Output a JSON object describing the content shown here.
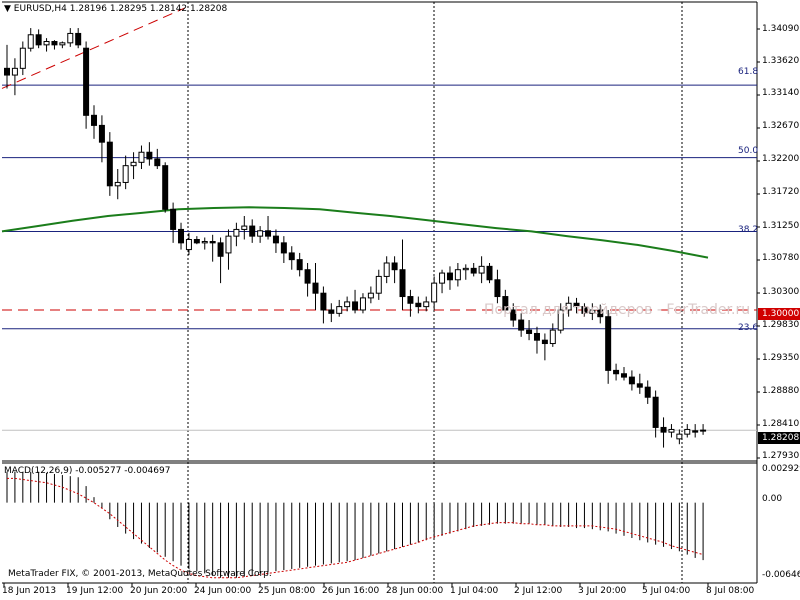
{
  "header": {
    "icon": "triangle-down-icon",
    "symbol_line": "EURUSD,H4  1.28196 1.28295 1.28142 1.28208"
  },
  "price_axis": {
    "labels": [
      "1.34090",
      "1.33620",
      "1.33140",
      "1.32670",
      "1.32200",
      "1.31720",
      "1.31250",
      "1.30780",
      "1.30300",
      "1.29830",
      "1.29350",
      "1.28880",
      "1.28410",
      "1.27930"
    ],
    "current_price": "1.28208",
    "dashed_price": "1.30000"
  },
  "fibo": {
    "levels": [
      "61.8",
      "50.0",
      "38.2",
      "23.6"
    ]
  },
  "watermark": "Портал для трейдеров - ForTrader.ru",
  "macd": {
    "title": "MACD(12,26,9) -0.005277 -0.004697",
    "axis_labels": [
      "0.002929",
      "0.00",
      "-0.006468"
    ]
  },
  "time_axis": {
    "labels": [
      "18 Jun 2013",
      "19 Jun 12:00",
      "20 Jun 20:00",
      "24 Jun 00:00",
      "25 Jun 08:00",
      "26 Jun 16:00",
      "28 Jun 00:00",
      "1 Jul 04:00",
      "2 Jul 12:00",
      "3 Jul 20:00",
      "5 Jul 04:00",
      "8 Jul 08:00"
    ]
  },
  "footer": "MetaTrader FIX, © 2001-2013, MetaQuotes Software Corp.",
  "colors": {
    "bull": "#ffffff",
    "bear": "#000000",
    "ma": "#1b7d1b",
    "fibo": "#1a237e",
    "trend": "#cc0000",
    "signal": "#cc0000",
    "badge_bg": "#d00000"
  },
  "chart_data": [
    {
      "type": "candlestick",
      "title": "EURUSD,H4",
      "ylim": [
        1.2775,
        1.3435
      ],
      "series": [
        {
          "o": 1.336,
          "h": 1.3395,
          "l": 1.333,
          "c": 1.335
        },
        {
          "o": 1.335,
          "h": 1.3375,
          "l": 1.332,
          "c": 1.336
        },
        {
          "o": 1.336,
          "h": 1.34,
          "l": 1.335,
          "c": 1.339
        },
        {
          "o": 1.339,
          "h": 1.342,
          "l": 1.3385,
          "c": 1.341
        },
        {
          "o": 1.341,
          "h": 1.3418,
          "l": 1.339,
          "c": 1.3395
        },
        {
          "o": 1.3395,
          "h": 1.3405,
          "l": 1.3385,
          "c": 1.34
        },
        {
          "o": 1.34,
          "h": 1.3402,
          "l": 1.3388,
          "c": 1.3395
        },
        {
          "o": 1.3395,
          "h": 1.34,
          "l": 1.339,
          "c": 1.3398
        },
        {
          "o": 1.3398,
          "h": 1.342,
          "l": 1.3392,
          "c": 1.3412
        },
        {
          "o": 1.3412,
          "h": 1.342,
          "l": 1.339,
          "c": 1.3395
        },
        {
          "o": 1.339,
          "h": 1.34,
          "l": 1.327,
          "c": 1.329
        },
        {
          "o": 1.329,
          "h": 1.3305,
          "l": 1.3255,
          "c": 1.3275
        },
        {
          "o": 1.3275,
          "h": 1.329,
          "l": 1.322,
          "c": 1.325
        },
        {
          "o": 1.325,
          "h": 1.3265,
          "l": 1.317,
          "c": 1.3185
        },
        {
          "o": 1.3185,
          "h": 1.321,
          "l": 1.3165,
          "c": 1.319
        },
        {
          "o": 1.319,
          "h": 1.323,
          "l": 1.318,
          "c": 1.3215
        },
        {
          "o": 1.3215,
          "h": 1.3235,
          "l": 1.3195,
          "c": 1.322
        },
        {
          "o": 1.322,
          "h": 1.3245,
          "l": 1.321,
          "c": 1.3235
        },
        {
          "o": 1.3235,
          "h": 1.325,
          "l": 1.3215,
          "c": 1.3225
        },
        {
          "o": 1.3225,
          "h": 1.324,
          "l": 1.321,
          "c": 1.3215
        },
        {
          "o": 1.3215,
          "h": 1.322,
          "l": 1.3145,
          "c": 1.315
        },
        {
          "o": 1.315,
          "h": 1.316,
          "l": 1.31,
          "c": 1.312
        },
        {
          "o": 1.312,
          "h": 1.313,
          "l": 1.309,
          "c": 1.31
        },
        {
          "o": 1.309,
          "h": 1.3115,
          "l": 1.3082,
          "c": 1.3105
        },
        {
          "o": 1.3105,
          "h": 1.311,
          "l": 1.3098,
          "c": 1.31
        },
        {
          "o": 1.31,
          "h": 1.3108,
          "l": 1.309,
          "c": 1.3102
        },
        {
          "o": 1.3102,
          "h": 1.3112,
          "l": 1.3072,
          "c": 1.31
        },
        {
          "o": 1.31,
          "h": 1.3108,
          "l": 1.304,
          "c": 1.308
        },
        {
          "o": 1.3085,
          "h": 1.312,
          "l": 1.306,
          "c": 1.311
        },
        {
          "o": 1.311,
          "h": 1.313,
          "l": 1.3095,
          "c": 1.312
        },
        {
          "o": 1.312,
          "h": 1.314,
          "l": 1.3105,
          "c": 1.3125
        },
        {
          "o": 1.3125,
          "h": 1.3135,
          "l": 1.31,
          "c": 1.311
        },
        {
          "o": 1.311,
          "h": 1.3125,
          "l": 1.31,
          "c": 1.3118
        },
        {
          "o": 1.3118,
          "h": 1.314,
          "l": 1.3105,
          "c": 1.311
        },
        {
          "o": 1.311,
          "h": 1.312,
          "l": 1.3085,
          "c": 1.31
        },
        {
          "o": 1.31,
          "h": 1.311,
          "l": 1.307,
          "c": 1.3085
        },
        {
          "o": 1.3085,
          "h": 1.3095,
          "l": 1.306,
          "c": 1.3075
        },
        {
          "o": 1.3075,
          "h": 1.3085,
          "l": 1.305,
          "c": 1.306
        },
        {
          "o": 1.306,
          "h": 1.307,
          "l": 1.302,
          "c": 1.304
        },
        {
          "o": 1.304,
          "h": 1.307,
          "l": 1.3,
          "c": 1.3025
        },
        {
          "o": 1.3025,
          "h": 1.3035,
          "l": 1.298,
          "c": 1.3
        },
        {
          "o": 1.3,
          "h": 1.301,
          "l": 1.2982,
          "c": 1.2995
        },
        {
          "o": 1.2995,
          "h": 1.3015,
          "l": 1.299,
          "c": 1.3005
        },
        {
          "o": 1.3005,
          "h": 1.302,
          "l": 1.2998,
          "c": 1.3012
        },
        {
          "o": 1.3012,
          "h": 1.303,
          "l": 1.2995,
          "c": 1.3
        },
        {
          "o": 1.3,
          "h": 1.3025,
          "l": 1.2995,
          "c": 1.3018
        },
        {
          "o": 1.3018,
          "h": 1.3035,
          "l": 1.301,
          "c": 1.3025
        },
        {
          "o": 1.3025,
          "h": 1.306,
          "l": 1.3015,
          "c": 1.305
        },
        {
          "o": 1.305,
          "h": 1.308,
          "l": 1.304,
          "c": 1.307
        },
        {
          "o": 1.307,
          "h": 1.308,
          "l": 1.304,
          "c": 1.306
        },
        {
          "o": 1.306,
          "h": 1.3105,
          "l": 1.3,
          "c": 1.302
        },
        {
          "o": 1.302,
          "h": 1.303,
          "l": 1.299,
          "c": 1.301
        },
        {
          "o": 1.301,
          "h": 1.302,
          "l": 1.2995,
          "c": 1.3005
        },
        {
          "o": 1.3005,
          "h": 1.302,
          "l": 1.2998,
          "c": 1.3012
        },
        {
          "o": 1.3012,
          "h": 1.305,
          "l": 1.3,
          "c": 1.304
        },
        {
          "o": 1.304,
          "h": 1.306,
          "l": 1.3025,
          "c": 1.3055
        },
        {
          "o": 1.3055,
          "h": 1.3065,
          "l": 1.303,
          "c": 1.3045
        },
        {
          "o": 1.3045,
          "h": 1.307,
          "l": 1.3035,
          "c": 1.306
        },
        {
          "o": 1.306,
          "h": 1.3068,
          "l": 1.3045,
          "c": 1.3062
        },
        {
          "o": 1.3062,
          "h": 1.307,
          "l": 1.305,
          "c": 1.3055
        },
        {
          "o": 1.3055,
          "h": 1.308,
          "l": 1.304,
          "c": 1.3065
        },
        {
          "o": 1.3065,
          "h": 1.307,
          "l": 1.304,
          "c": 1.3045
        },
        {
          "o": 1.3045,
          "h": 1.306,
          "l": 1.301,
          "c": 1.302
        },
        {
          "o": 1.302,
          "h": 1.303,
          "l": 1.2995,
          "c": 1.3
        },
        {
          "o": 1.3,
          "h": 1.301,
          "l": 1.2975,
          "c": 1.2985
        },
        {
          "o": 1.2985,
          "h": 1.2995,
          "l": 1.296,
          "c": 1.297
        },
        {
          "o": 1.297,
          "h": 1.2985,
          "l": 1.2955,
          "c": 1.2965
        },
        {
          "o": 1.2965,
          "h": 1.2975,
          "l": 1.2935,
          "c": 1.2955
        },
        {
          "o": 1.2955,
          "h": 1.2965,
          "l": 1.2925,
          "c": 1.295
        },
        {
          "o": 1.295,
          "h": 1.298,
          "l": 1.2945,
          "c": 1.297
        },
        {
          "o": 1.297,
          "h": 1.301,
          "l": 1.2965,
          "c": 1.3
        },
        {
          "o": 1.3,
          "h": 1.302,
          "l": 1.299,
          "c": 1.301
        },
        {
          "o": 1.301,
          "h": 1.3018,
          "l": 1.2995,
          "c": 1.3005
        },
        {
          "o": 1.3005,
          "h": 1.301,
          "l": 1.299,
          "c": 1.2995
        },
        {
          "o": 1.2995,
          "h": 1.301,
          "l": 1.2985,
          "c": 1.3
        },
        {
          "o": 1.3,
          "h": 1.3008,
          "l": 1.298,
          "c": 1.299
        },
        {
          "o": 1.299,
          "h": 1.3,
          "l": 1.289,
          "c": 1.291
        },
        {
          "o": 1.291,
          "h": 1.292,
          "l": 1.2895,
          "c": 1.2905
        },
        {
          "o": 1.2905,
          "h": 1.2915,
          "l": 1.2895,
          "c": 1.29
        },
        {
          "o": 1.29,
          "h": 1.291,
          "l": 1.288,
          "c": 1.289
        },
        {
          "o": 1.289,
          "h": 1.2905,
          "l": 1.2875,
          "c": 1.2885
        },
        {
          "o": 1.2885,
          "h": 1.2895,
          "l": 1.286,
          "c": 1.287
        },
        {
          "o": 1.287,
          "h": 1.288,
          "l": 1.281,
          "c": 1.2825
        },
        {
          "o": 1.2825,
          "h": 1.284,
          "l": 1.2795,
          "c": 1.2818
        },
        {
          "o": 1.2818,
          "h": 1.283,
          "l": 1.281,
          "c": 1.2822
        },
        {
          "o": 1.2808,
          "h": 1.2822,
          "l": 1.28,
          "c": 1.2815
        },
        {
          "o": 1.2815,
          "h": 1.283,
          "l": 1.281,
          "c": 1.2822
        },
        {
          "o": 1.282,
          "h": 1.283,
          "l": 1.281,
          "c": 1.2818
        },
        {
          "o": 1.282,
          "h": 1.283,
          "l": 1.2814,
          "c": 1.2821
        }
      ],
      "ma": [
        1.3117,
        1.3125,
        1.3133,
        1.314,
        1.3145,
        1.315,
        1.3152,
        1.3153,
        1.3152,
        1.315,
        1.3145,
        1.314,
        1.3134,
        1.3128,
        1.3122,
        1.3117,
        1.311,
        1.3104,
        1.3097,
        1.3088,
        1.3078
      ],
      "horizontal_lines": {
        "fibo_61.8": 1.3335,
        "fibo_50.0": 1.3227,
        "fibo_38.2": 1.3117,
        "fibo_23.6": 1.2972,
        "dashed": 1.3,
        "current": 1.28208
      },
      "trend_line": [
        [
          1.333,
          1.345
        ]
      ]
    },
    {
      "type": "bar",
      "title": "MACD(12,26,9)",
      "ylim": [
        -0.007,
        0.0035
      ],
      "main": [
        0.0028,
        0.0028,
        0.0028,
        0.0028,
        0.0028,
        0.0027,
        0.0026,
        0.0025,
        0.0024,
        0.0023,
        0.0015,
        0.0005,
        -0.0005,
        -0.0015,
        -0.0022,
        -0.0028,
        -0.0033,
        -0.0037,
        -0.0041,
        -0.0045,
        -0.0049,
        -0.0053,
        -0.0057,
        -0.006,
        -0.0062,
        -0.0064,
        -0.0066,
        -0.0068,
        -0.0068,
        -0.0068,
        -0.0067,
        -0.0066,
        -0.0064,
        -0.0063,
        -0.0062,
        -0.0061,
        -0.006,
        -0.0059,
        -0.0058,
        -0.0057,
        -0.0056,
        -0.0055,
        -0.0054,
        -0.0053,
        -0.0052,
        -0.005,
        -0.0048,
        -0.0046,
        -0.0044,
        -0.0042,
        -0.004,
        -0.0038,
        -0.0036,
        -0.0034,
        -0.0032,
        -0.003,
        -0.0028,
        -0.0026,
        -0.0024,
        -0.0022,
        -0.0021,
        -0.002,
        -0.0019,
        -0.0019,
        -0.0019,
        -0.0019,
        -0.0019,
        -0.002,
        -0.002,
        -0.0021,
        -0.0022,
        -0.0022,
        -0.0023,
        -0.0023,
        -0.0024,
        -0.0025,
        -0.0026,
        -0.0028,
        -0.003,
        -0.0032,
        -0.0034,
        -0.0036,
        -0.0038,
        -0.004,
        -0.0042,
        -0.0044,
        -0.0047,
        -0.005,
        -0.0052
      ],
      "signal": [
        0.0022,
        0.0022,
        0.0021,
        0.002,
        0.0019,
        0.0018,
        0.0016,
        0.0014,
        0.0011,
        0.0008,
        0.0004,
        0.0,
        -0.0005,
        -0.001,
        -0.0016,
        -0.0022,
        -0.0028,
        -0.0034,
        -0.004,
        -0.0046,
        -0.0052,
        -0.0057,
        -0.0061,
        -0.0064,
        -0.0066,
        -0.0067,
        -0.0068,
        -0.0068,
        -0.0068,
        -0.0068,
        -0.0067,
        -0.0066,
        -0.0065,
        -0.0064,
        -0.0063,
        -0.0062,
        -0.0061,
        -0.006,
        -0.0059,
        -0.0058,
        -0.0057,
        -0.0056,
        -0.0055,
        -0.0054,
        -0.0052,
        -0.005,
        -0.0048,
        -0.0046,
        -0.0044,
        -0.0042,
        -0.004,
        -0.0038,
        -0.0036,
        -0.0033,
        -0.0031,
        -0.0029,
        -0.0027,
        -0.0025,
        -0.0023,
        -0.0021,
        -0.002,
        -0.0019,
        -0.0018,
        -0.0018,
        -0.0018,
        -0.0019,
        -0.0019,
        -0.002,
        -0.002,
        -0.0021,
        -0.0021,
        -0.0021,
        -0.0021,
        -0.0021,
        -0.0021,
        -0.0022,
        -0.0023,
        -0.0024,
        -0.0026,
        -0.0028,
        -0.003,
        -0.0032,
        -0.0034,
        -0.0036,
        -0.0039,
        -0.0041,
        -0.0043,
        -0.0045,
        -0.0047
      ]
    }
  ]
}
